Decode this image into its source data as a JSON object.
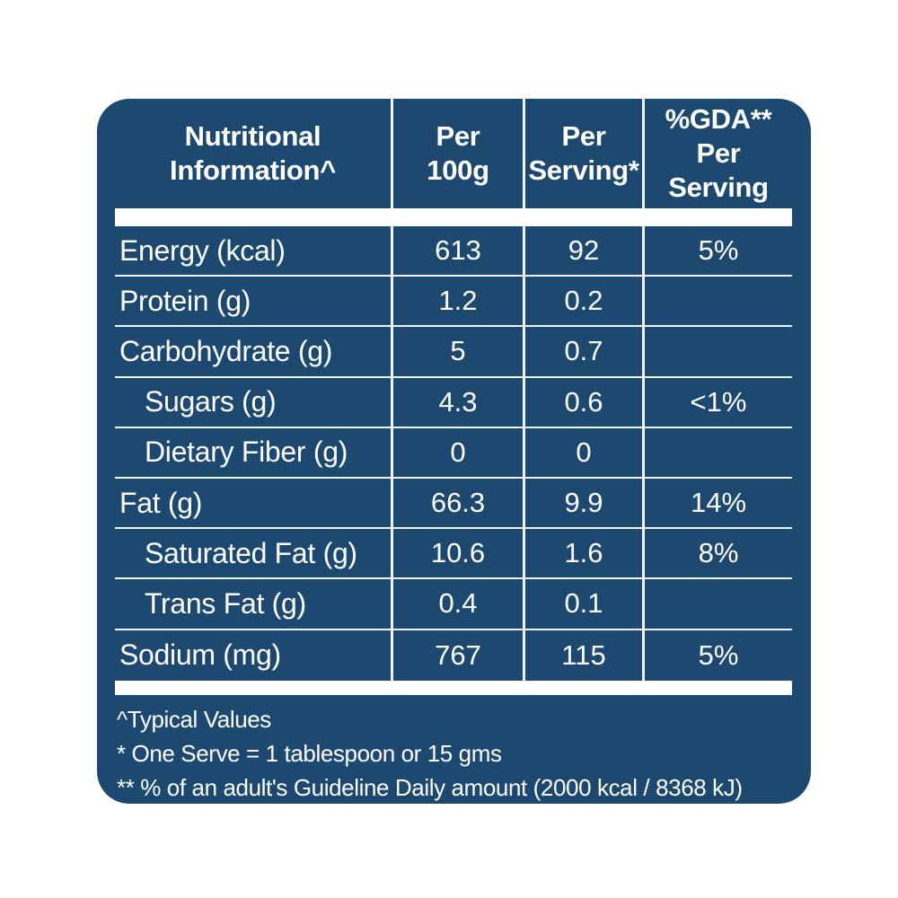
{
  "colors": {
    "panel_bg": "#1d4971",
    "text": "#ffffff",
    "divider": "#eef3f8",
    "bar": "#ffffff"
  },
  "table": {
    "header": {
      "columns": [
        {
          "line1": "Nutritional",
          "line2": "Information^"
        },
        {
          "line1": "Per",
          "line2": "100g"
        },
        {
          "line1": "Per",
          "line2": "Serving*"
        },
        {
          "line1": "%GDA**",
          "line2": "Per Serving"
        }
      ]
    },
    "rows": [
      {
        "label": "Energy (kcal)",
        "per_100g": "613",
        "per_serving": "92",
        "gda": "5%"
      },
      {
        "label": "Protein (g)",
        "per_100g": "1.2",
        "per_serving": "0.2",
        "gda": ""
      },
      {
        "label": "Carbohydrate (g)",
        "per_100g": "5",
        "per_serving": "0.7",
        "gda": ""
      },
      {
        "label": "Sugars (g)",
        "per_100g": "4.3",
        "per_serving": "0.6",
        "gda": "<1%"
      },
      {
        "label": "Dietary Fiber (g)",
        "per_100g": "0",
        "per_serving": "0",
        "gda": ""
      },
      {
        "label": "Fat (g)",
        "per_100g": "66.3",
        "per_serving": "9.9",
        "gda": "14%"
      },
      {
        "label": "Saturated Fat (g)",
        "per_100g": "10.6",
        "per_serving": "1.6",
        "gda": "8%"
      },
      {
        "label": "Trans Fat (g)",
        "per_100g": "0.4",
        "per_serving": "0.1",
        "gda": ""
      },
      {
        "label": "Sodium (mg)",
        "per_100g": "767",
        "per_serving": "115",
        "gda": "5%"
      }
    ]
  },
  "footnotes": [
    "^Typical Values",
    "* One Serve = 1 tablespoon or 15 gms",
    "** % of an adult's Guideline Daily amount (2000 kcal / 8368 kJ)"
  ]
}
